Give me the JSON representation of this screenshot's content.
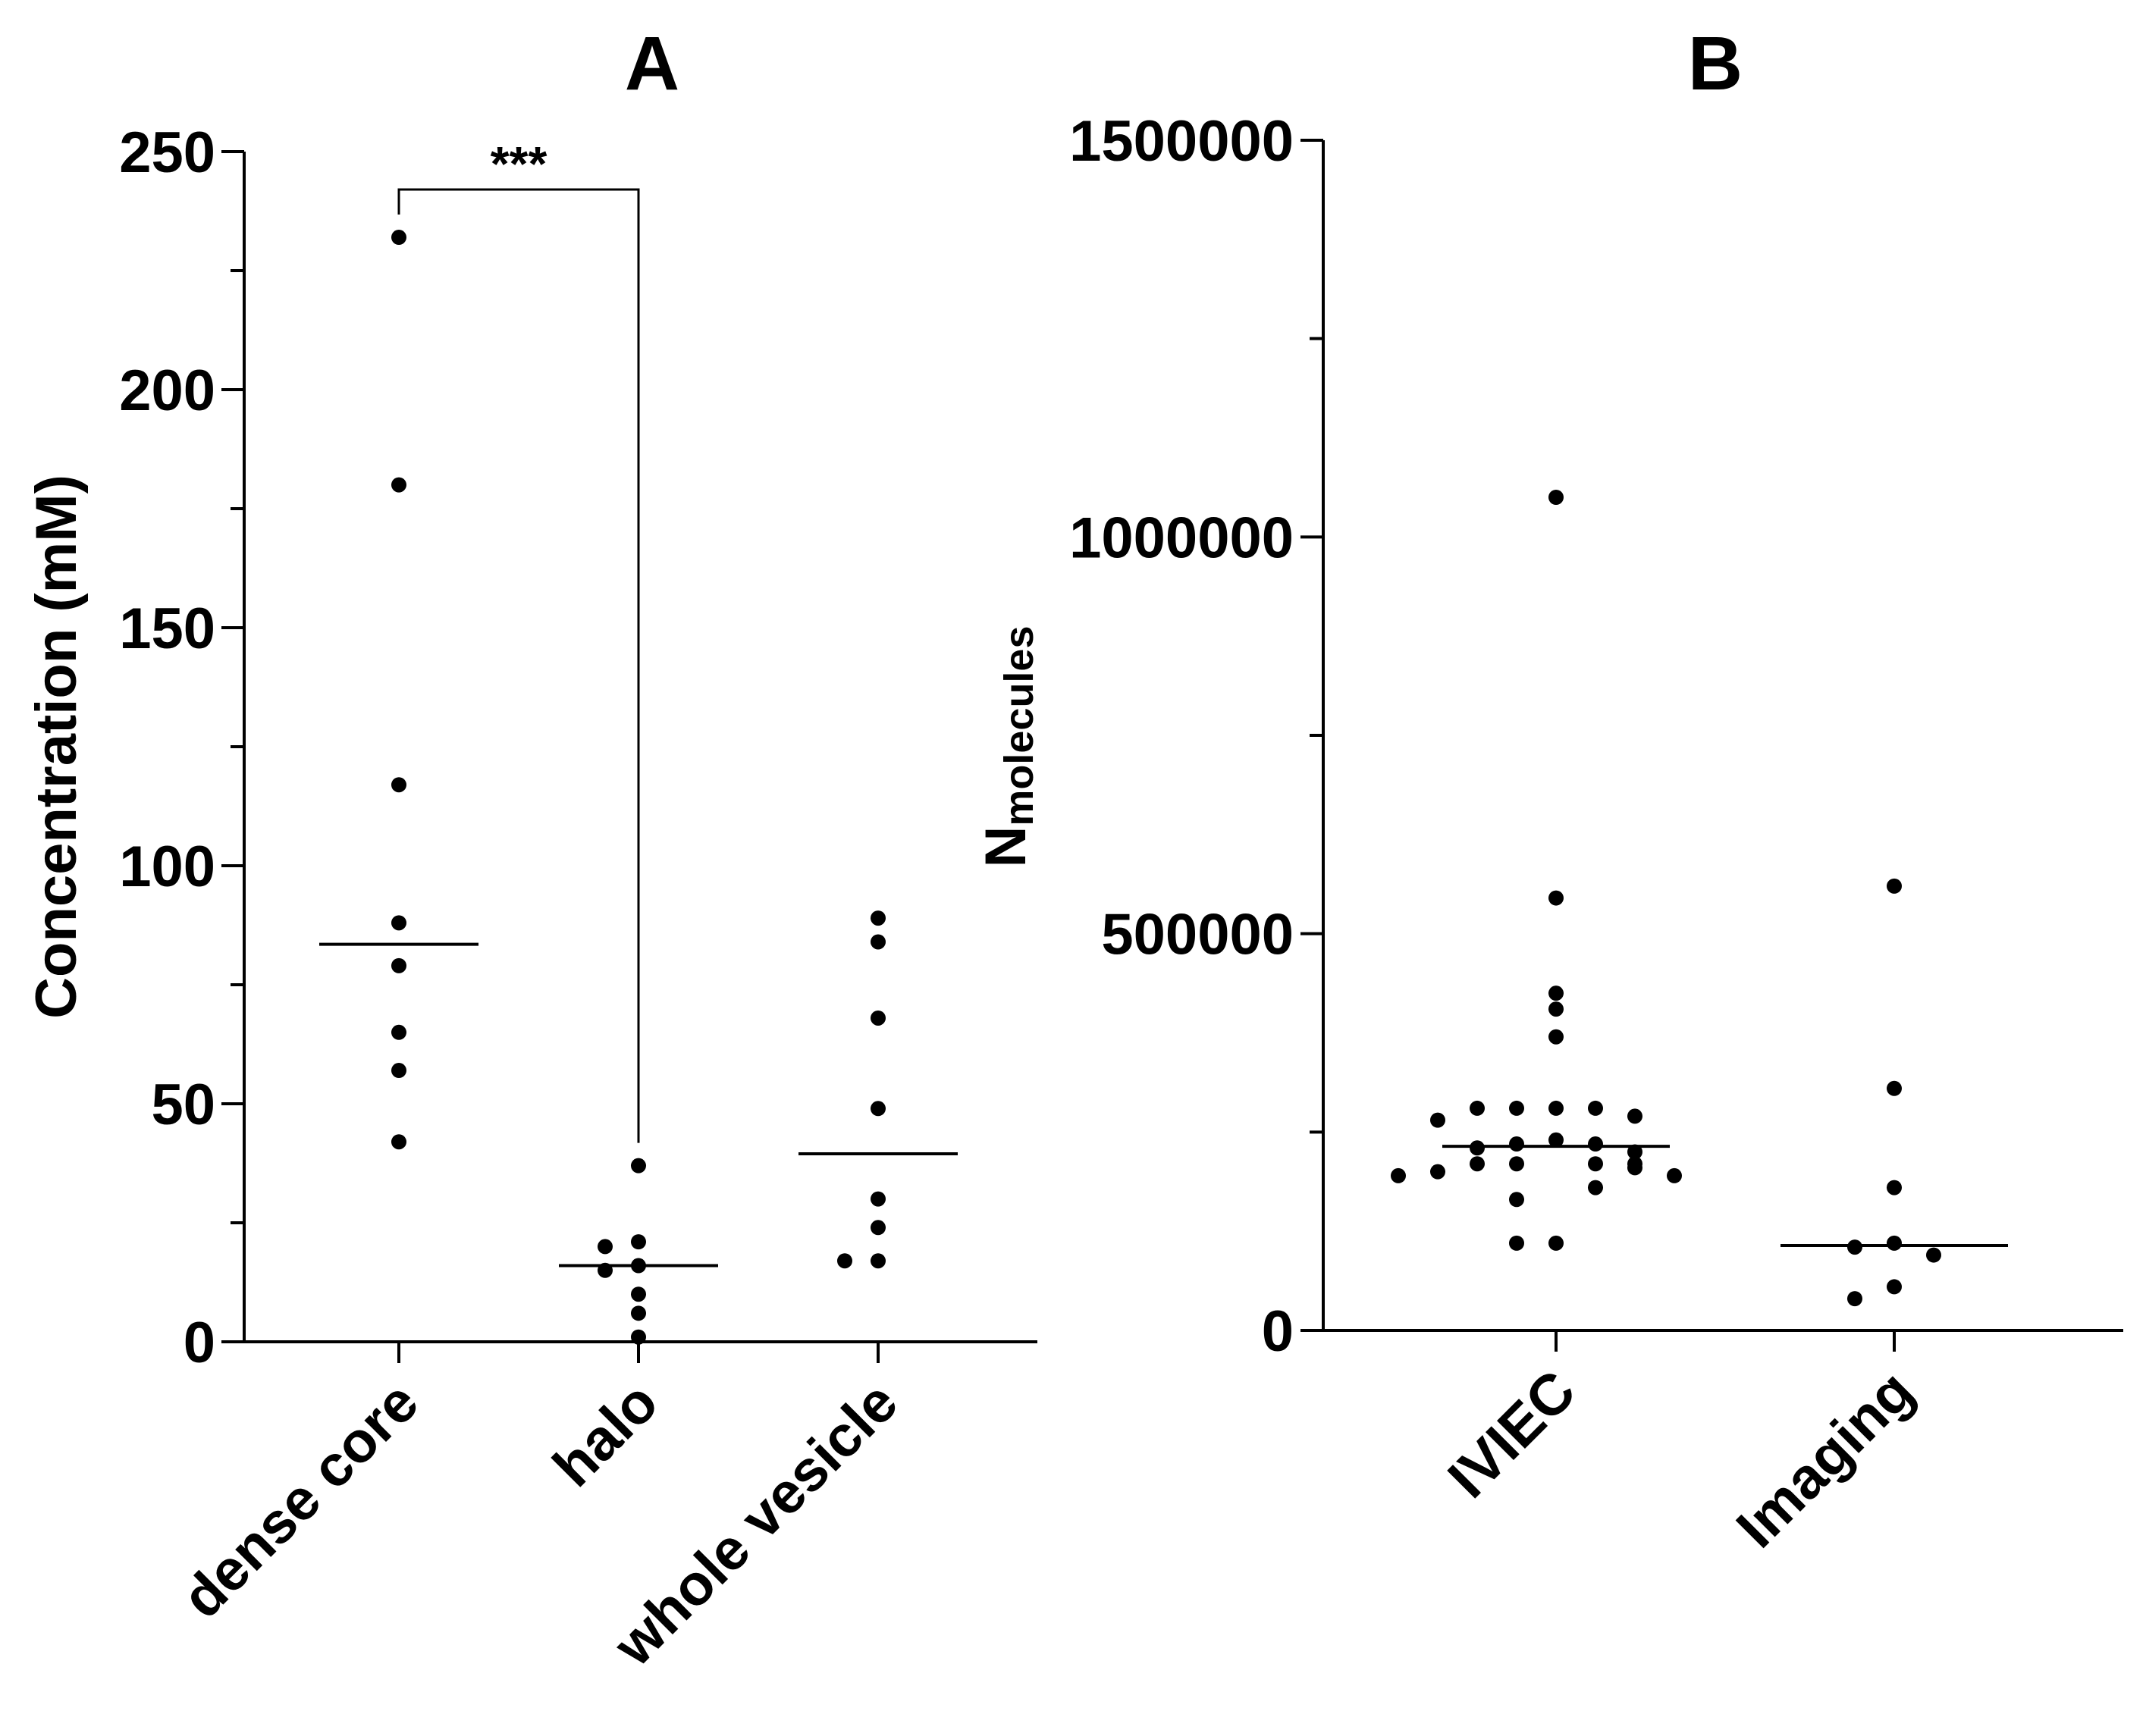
{
  "colors": {
    "axis": "#000000",
    "points": "#000000",
    "background": "#ffffff"
  },
  "chart_data": [
    {
      "panel_label": "A",
      "type": "scatter",
      "title": "",
      "xlabel": "",
      "ylabel": "Concentration (mM)",
      "ylim": [
        0,
        250
      ],
      "y_ticks": [
        0,
        50,
        100,
        150,
        200,
        250
      ],
      "y_tick_labels": [
        "0",
        "50",
        "100",
        "150",
        "200",
        "250"
      ],
      "y_minor_step": 25,
      "categories": [
        "dense core",
        "halo",
        "whole vesicle"
      ],
      "series": [
        {
          "name": "dense core",
          "values": [
            232,
            180,
            117,
            88,
            79,
            65,
            57,
            42
          ],
          "median": 83.5
        },
        {
          "name": "halo",
          "values": [
            37,
            21,
            20,
            16,
            15,
            10,
            6,
            1
          ],
          "median": 16
        },
        {
          "name": "whole vesicle",
          "values": [
            89,
            84,
            68,
            49,
            30,
            24,
            17,
            17
          ],
          "median": 39.5
        }
      ],
      "significance": {
        "from": "dense core",
        "to": "halo",
        "label": "***"
      }
    },
    {
      "panel_label": "B",
      "type": "scatter",
      "title": "",
      "xlabel": "",
      "ylabel_main": "N",
      "ylabel_sub": "molecules",
      "ylim": [
        0,
        1500000
      ],
      "y_ticks": [
        0,
        500000,
        1000000,
        1500000
      ],
      "y_tick_labels": [
        "0",
        "500000",
        "1000000",
        "1500000"
      ],
      "y_minor_step": 250000,
      "categories": [
        "IVIEC",
        "Imaging"
      ],
      "series": [
        {
          "name": "IVIEC",
          "values": [
            1050000,
            545000,
            425000,
            405000,
            370000,
            280000,
            280000,
            280000,
            280000,
            270000,
            265000,
            240000,
            235000,
            235000,
            230000,
            225000,
            210000,
            210000,
            210000,
            210000,
            205000,
            200000,
            195000,
            195000,
            180000,
            165000,
            110000,
            110000
          ],
          "median": 232000
        },
        {
          "name": "Imaging",
          "values": [
            560000,
            305000,
            180000,
            110000,
            105000,
            95000,
            55000,
            40000
          ],
          "median": 107000
        }
      ]
    }
  ]
}
